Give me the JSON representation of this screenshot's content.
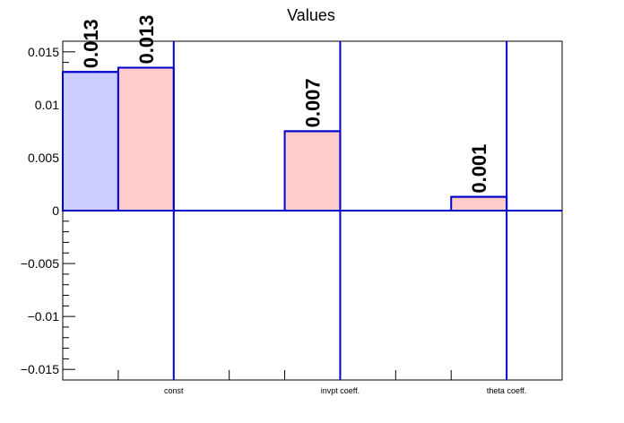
{
  "chart_data": {
    "type": "bar",
    "title": "Values",
    "categories": [
      "const",
      "invpt coeff.",
      "theta coeff."
    ],
    "ylim": [
      -0.016,
      0.016
    ],
    "y_ticks": [
      "0.015",
      "0.01",
      "0.005",
      "0",
      "−0.005",
      "−0.01",
      "−0.015"
    ],
    "y_tick_values": [
      0.015,
      0.01,
      0.005,
      0,
      -0.005,
      -0.01,
      -0.015
    ],
    "series": [
      {
        "color": "#ccccff",
        "edge_color": "#0000cc",
        "values": [
          0.0131,
          null,
          null
        ],
        "labels": [
          "0.013",
          "",
          ""
        ]
      },
      {
        "color": "#ffcccc",
        "edge_color": "#0000cc",
        "values": [
          0.0135,
          0.0075,
          0.0013
        ],
        "labels": [
          "0.013",
          "0.007",
          "0.001"
        ]
      }
    ],
    "grid": false,
    "legend": "none"
  }
}
